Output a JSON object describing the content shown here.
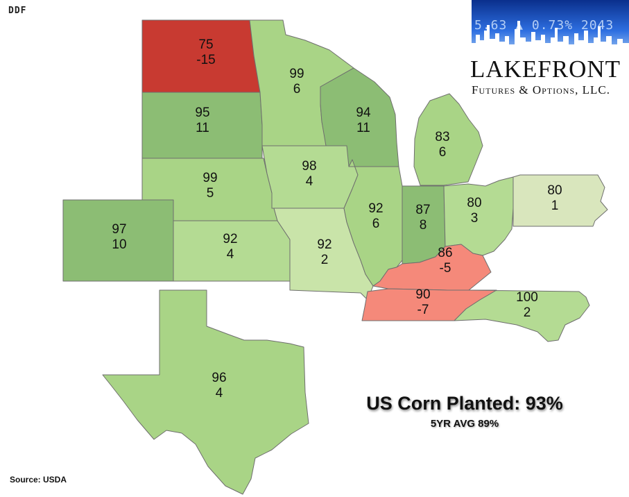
{
  "brand": {
    "mark": "DDF"
  },
  "logo": {
    "ticker": "5.63 ▲ 0.73% 2043",
    "name": "Lakefront",
    "tagline": "Futures & Options, LLC."
  },
  "title": "US Corn Planted: 93%",
  "subtitle": "5YR AVG 89%",
  "source": "Source: USDA",
  "colors": {
    "strong_green": "#8cbd74",
    "green": "#a9d486",
    "light_green": "#b4db93",
    "pale_green": "#c9e4a9",
    "neutral": "#d9e6bd",
    "light_red": "#f5897a",
    "red": "#c83a31"
  },
  "states": [
    {
      "id": "ND",
      "name": "North Dakota",
      "planted": "75",
      "vs_avg": "-15",
      "fill": "#c83a31"
    },
    {
      "id": "SD",
      "name": "South Dakota",
      "planted": "95",
      "vs_avg": "11",
      "fill": "#8cbd74"
    },
    {
      "id": "NE",
      "name": "Nebraska",
      "planted": "99",
      "vs_avg": "5",
      "fill": "#a9d486"
    },
    {
      "id": "CO",
      "name": "Colorado",
      "planted": "97",
      "vs_avg": "10",
      "fill": "#8cbd74"
    },
    {
      "id": "KS",
      "name": "Kansas",
      "planted": "92",
      "vs_avg": "4",
      "fill": "#b4db93"
    },
    {
      "id": "TX",
      "name": "Texas",
      "planted": "96",
      "vs_avg": "4",
      "fill": "#a9d486"
    },
    {
      "id": "MN",
      "name": "Minnesota",
      "planted": "99",
      "vs_avg": "6",
      "fill": "#a9d486"
    },
    {
      "id": "IA",
      "name": "Iowa",
      "planted": "98",
      "vs_avg": "4",
      "fill": "#b4db93"
    },
    {
      "id": "MO",
      "name": "Missouri",
      "planted": "92",
      "vs_avg": "2",
      "fill": "#c9e4a9"
    },
    {
      "id": "WI",
      "name": "Wisconsin",
      "planted": "94",
      "vs_avg": "11",
      "fill": "#8cbd74"
    },
    {
      "id": "IL",
      "name": "Illinois",
      "planted": "92",
      "vs_avg": "6",
      "fill": "#a9d486"
    },
    {
      "id": "MI",
      "name": "Michigan",
      "planted": "83",
      "vs_avg": "6",
      "fill": "#a9d486"
    },
    {
      "id": "IN",
      "name": "Indiana",
      "planted": "87",
      "vs_avg": "8",
      "fill": "#8cbd74"
    },
    {
      "id": "OH",
      "name": "Ohio",
      "planted": "80",
      "vs_avg": "3",
      "fill": "#b4db93"
    },
    {
      "id": "PA",
      "name": "Pennsylvania",
      "planted": "80",
      "vs_avg": "1",
      "fill": "#d9e6bd"
    },
    {
      "id": "KY",
      "name": "Kentucky",
      "planted": "86",
      "vs_avg": "-5",
      "fill": "#f5897a"
    },
    {
      "id": "TN",
      "name": "Tennessee",
      "planted": "90",
      "vs_avg": "-7",
      "fill": "#f5897a"
    },
    {
      "id": "NC",
      "name": "North Carolina",
      "planted": "100",
      "vs_avg": "2",
      "fill": "#b4db93"
    }
  ]
}
